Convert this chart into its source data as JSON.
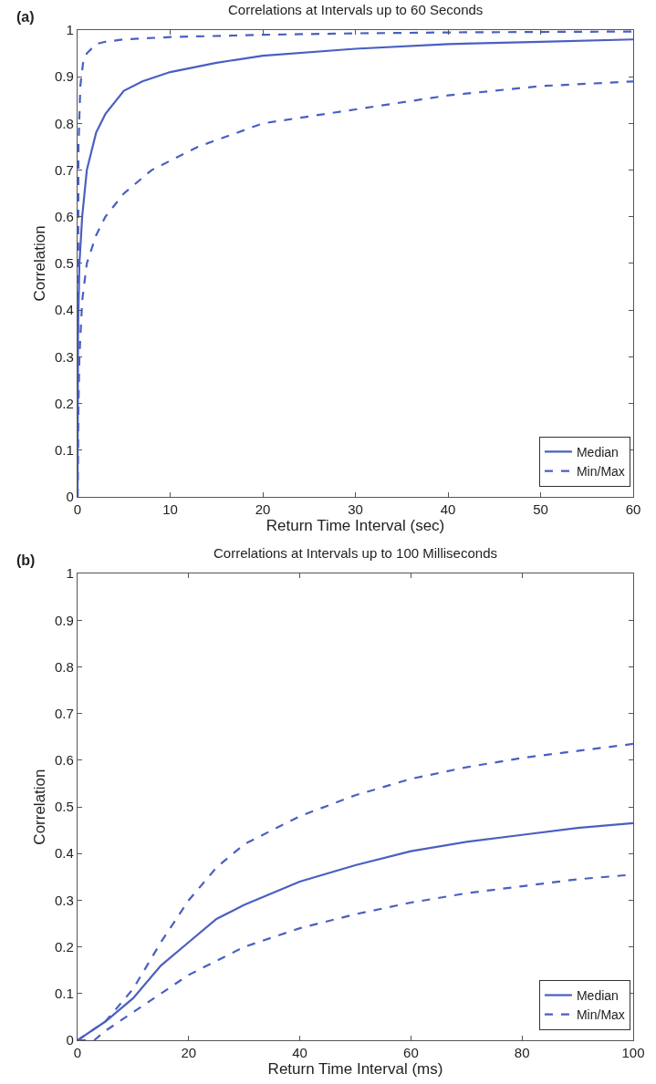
{
  "chart_data": [
    {
      "type": "line",
      "title": "Correlations at Intervals up to 60 Seconds",
      "xlabel": "Return Time Interval (sec)",
      "ylabel": "Correlation",
      "annotations": [
        "(a)"
      ],
      "xlim": [
        0,
        60
      ],
      "xticks": [
        0,
        10,
        20,
        30,
        40,
        50,
        60
      ],
      "ylim": [
        0,
        1
      ],
      "yticks": [
        0,
        0.1,
        0.2,
        0.3,
        0.4,
        0.5,
        0.6,
        0.7,
        0.8,
        0.9,
        1
      ],
      "grid": false,
      "legend": "bottom right",
      "marker": "none",
      "series": [
        {
          "name": "Median",
          "color": "#4a5fc1",
          "line_style": "solid",
          "x": [
            0,
            0.05,
            0.2,
            0.5,
            1,
            2,
            3,
            5,
            7,
            10,
            15,
            20,
            30,
            40,
            50,
            60
          ],
          "values": [
            0,
            0.35,
            0.5,
            0.6,
            0.7,
            0.78,
            0.82,
            0.87,
            0.89,
            0.91,
            0.93,
            0.945,
            0.96,
            0.97,
            0.975,
            0.98
          ]
        },
        {
          "name": "Min/Max",
          "color": "#4a5fc1",
          "line_style": "dashed",
          "x": [
            0,
            0.1,
            0.3,
            0.6,
            1,
            2,
            3,
            5,
            10,
            20,
            30,
            40,
            60
          ],
          "values": [
            0,
            0.75,
            0.88,
            0.93,
            0.95,
            0.97,
            0.975,
            0.98,
            0.985,
            0.99,
            0.993,
            0.995,
            0.997
          ]
        },
        {
          "color": "#4a5fc1",
          "line_style": "dashed",
          "x": [
            0,
            0.1,
            0.2,
            0.5,
            1,
            2,
            3,
            5,
            8,
            13,
            20,
            30,
            40,
            50,
            60
          ],
          "values": [
            0,
            0.2,
            0.3,
            0.42,
            0.5,
            0.56,
            0.6,
            0.65,
            0.7,
            0.75,
            0.8,
            0.83,
            0.86,
            0.88,
            0.89
          ]
        }
      ]
    },
    {
      "type": "line",
      "title": "Correlations at Intervals up to 100 Milliseconds",
      "xlabel": "Return Time Interval (ms)",
      "ylabel": "Correlation",
      "annotations": [
        "(b)"
      ],
      "xlim": [
        0,
        100
      ],
      "xticks": [
        0,
        20,
        40,
        60,
        80,
        100
      ],
      "ylim": [
        0,
        1
      ],
      "yticks": [
        0,
        0.1,
        0.2,
        0.3,
        0.4,
        0.5,
        0.6,
        0.7,
        0.8,
        0.9,
        1
      ],
      "grid": false,
      "legend": "bottom right",
      "marker": "none",
      "series": [
        {
          "name": "Median",
          "color": "#4a5fc1",
          "line_style": "solid",
          "x": [
            0,
            5,
            10,
            15,
            20,
            25,
            30,
            40,
            50,
            60,
            70,
            80,
            90,
            100
          ],
          "values": [
            0,
            0.04,
            0.09,
            0.16,
            0.21,
            0.26,
            0.29,
            0.34,
            0.375,
            0.405,
            0.425,
            0.44,
            0.455,
            0.465
          ]
        },
        {
          "name": "Min/Max",
          "color": "#4a5fc1",
          "line_style": "dashed",
          "x": [
            0,
            5,
            10,
            15,
            20,
            25,
            30,
            40,
            50,
            60,
            70,
            80,
            90,
            100
          ],
          "values": [
            0,
            0.04,
            0.11,
            0.21,
            0.3,
            0.37,
            0.42,
            0.48,
            0.525,
            0.56,
            0.585,
            0.605,
            0.62,
            0.635
          ]
        },
        {
          "color": "#4a5fc1",
          "line_style": "dashed",
          "x": [
            0,
            3,
            5,
            10,
            15,
            20,
            30,
            40,
            50,
            60,
            70,
            80,
            90,
            100
          ],
          "values": [
            0,
            0,
            0.02,
            0.06,
            0.1,
            0.14,
            0.2,
            0.24,
            0.27,
            0.295,
            0.315,
            0.33,
            0.345,
            0.355
          ]
        }
      ]
    }
  ]
}
